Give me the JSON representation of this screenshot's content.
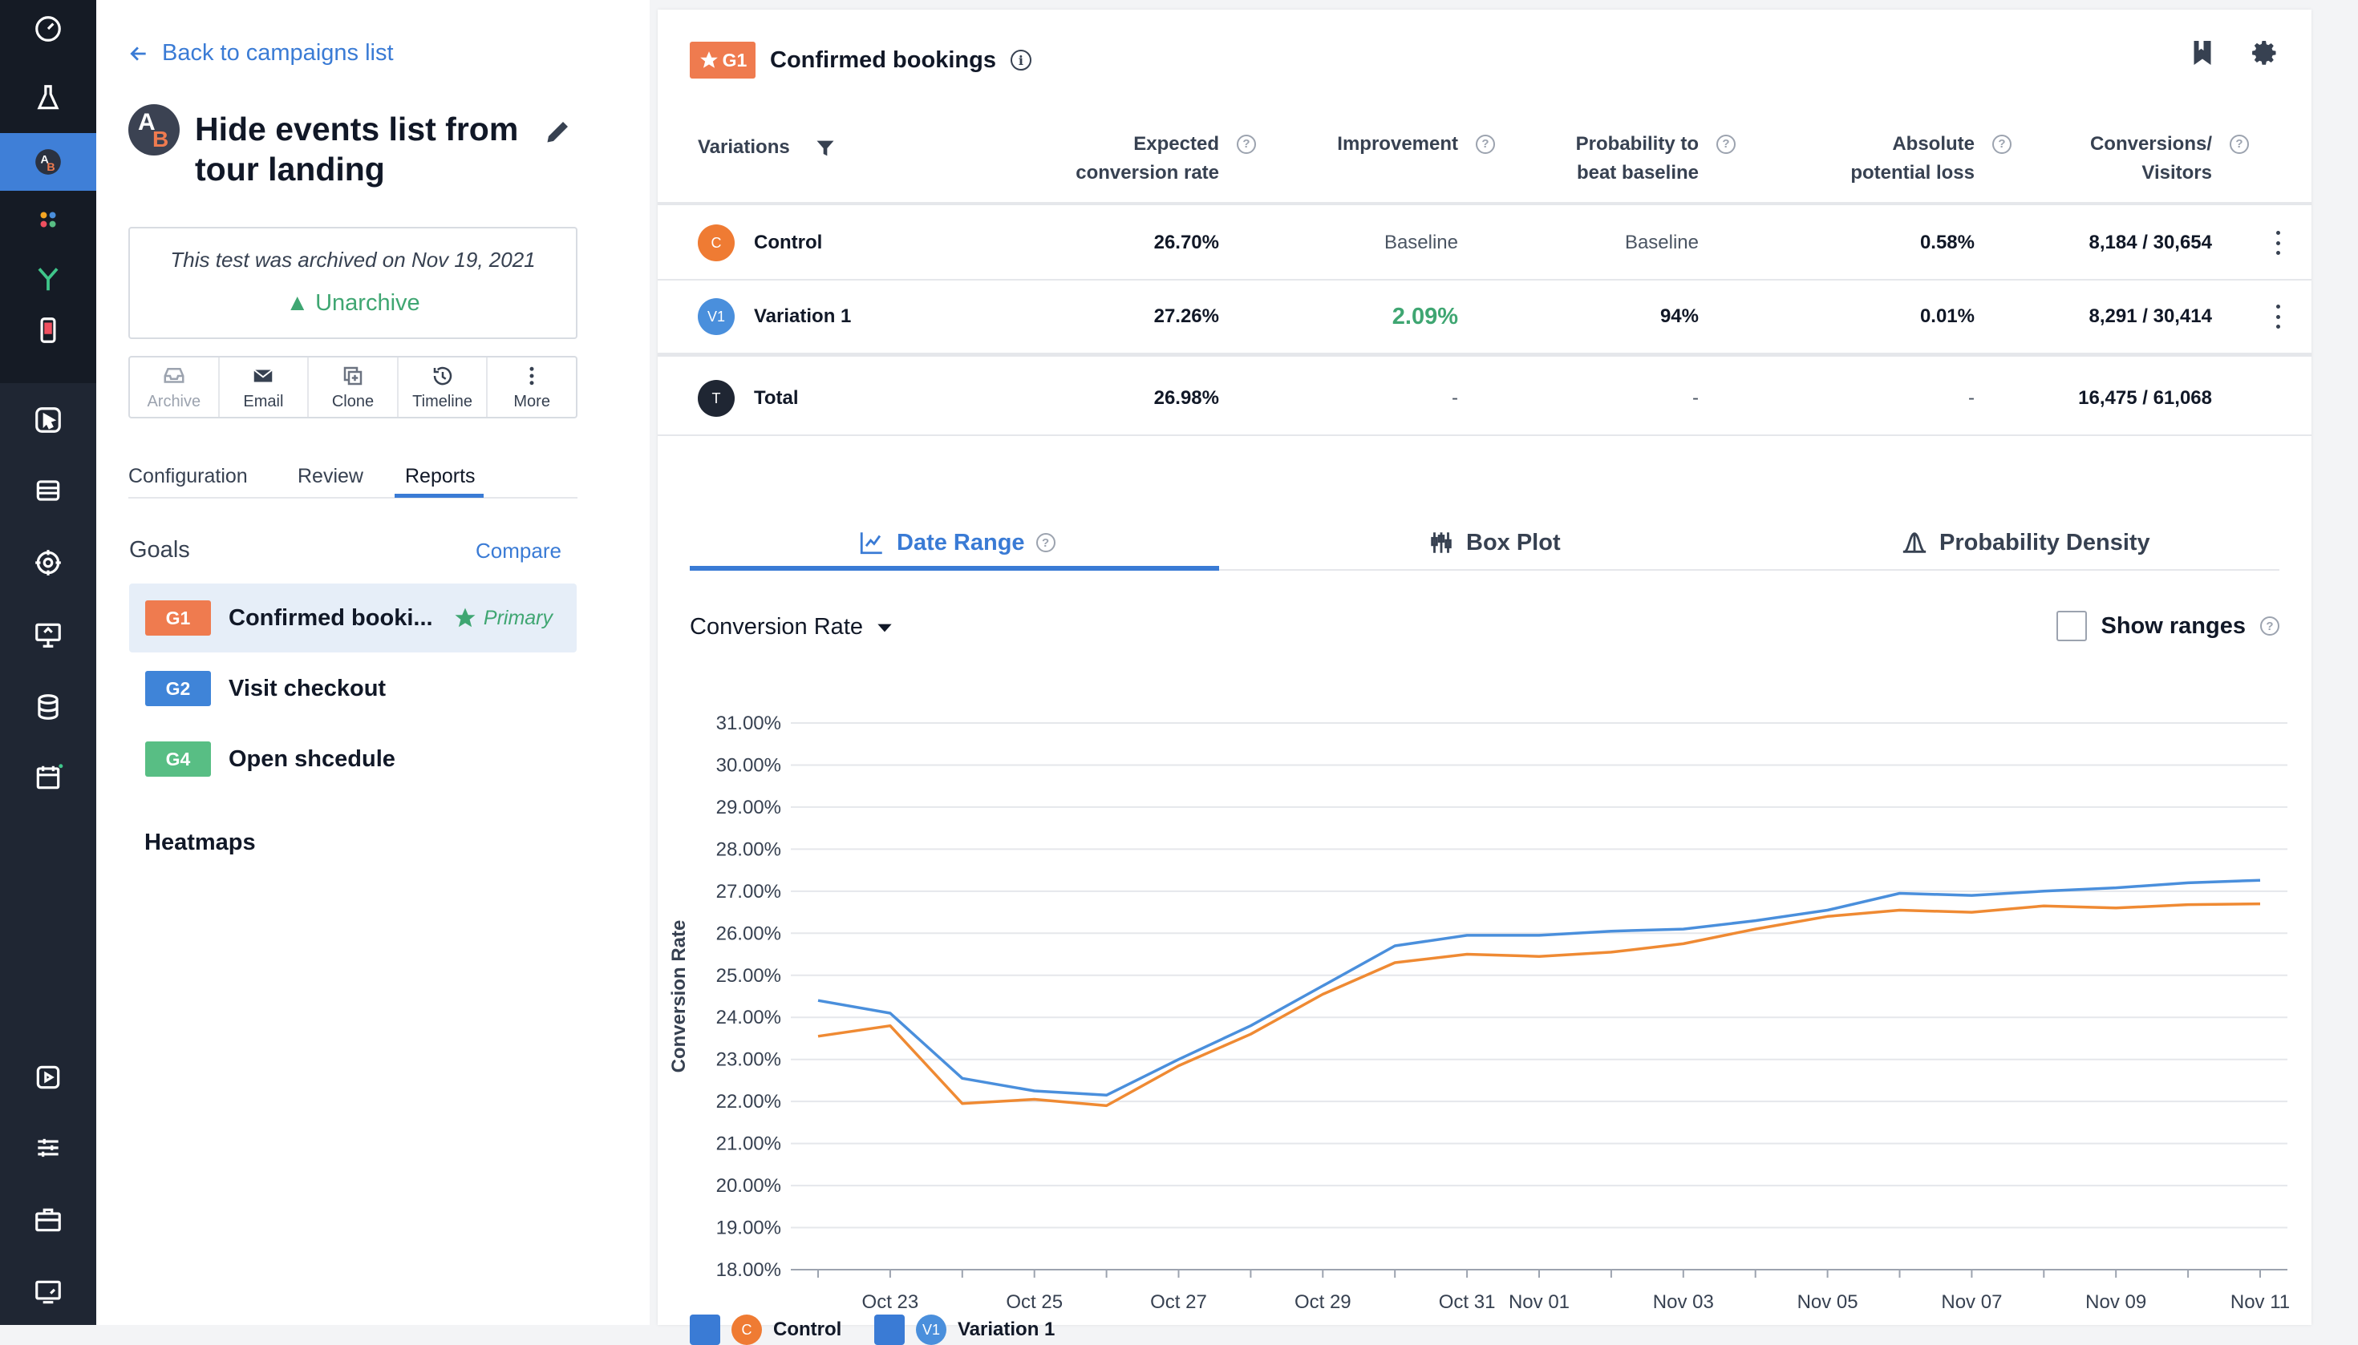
{
  "nav": {
    "back_label": "Back to campaigns list",
    "title": "Hide events list from tour landing",
    "avatar_letters": [
      "A",
      "B"
    ],
    "archived_message": "This test was archived on Nov 19, 2021",
    "unarchive_label": "Unarchive",
    "toolbar": [
      {
        "label": "Archive",
        "icon": "archive-icon",
        "disabled": true
      },
      {
        "label": "Email",
        "icon": "email-icon",
        "disabled": false
      },
      {
        "label": "Clone",
        "icon": "clone-icon",
        "disabled": false
      },
      {
        "label": "Timeline",
        "icon": "timeline-icon",
        "disabled": false
      },
      {
        "label": "More",
        "icon": "more-icon",
        "disabled": false
      }
    ],
    "tabs": [
      "Configuration",
      "Review",
      "Reports"
    ],
    "active_tab": "Reports",
    "goals_heading": "Goals",
    "compare_label": "Compare",
    "goals": [
      {
        "badge": "G1",
        "name": "Confirmed booki...",
        "color": "#ef7b4f",
        "primary": "Primary"
      },
      {
        "badge": "G2",
        "name": "Visit checkout",
        "color": "#3f84d8"
      },
      {
        "badge": "G4",
        "name": "Open shcedule",
        "color": "#58be84"
      }
    ],
    "heatmaps_label": "Heatmaps"
  },
  "report": {
    "badge": "G1",
    "title": "Confirmed bookings",
    "columns": {
      "variations": "Variations",
      "expected": "Expected\nconversion rate",
      "improvement": "Improvement",
      "probability": "Probability to\nbeat baseline",
      "loss": "Absolute\npotential loss",
      "conversions": "Conversions/\nVisitors"
    },
    "rows": [
      {
        "tag": "C",
        "name": "Control",
        "color": "#ef7b33",
        "expected": "26.70%",
        "improvement": "Baseline",
        "probability": "Baseline",
        "loss": "0.58%",
        "conversions": "8,184 / 30,654"
      },
      {
        "tag": "V1",
        "name": "Variation 1",
        "color": "#4a8fdc",
        "expected": "27.26%",
        "improvement": "2.09%",
        "probability": "94%",
        "loss": "0.01%",
        "conversions": "8,291 / 30,414"
      },
      {
        "tag": "T",
        "name": "Total",
        "color": "#1f2633",
        "expected": "26.98%",
        "improvement": "-",
        "probability": "-",
        "loss": "-",
        "conversions": "16,475 / 61,068"
      }
    ],
    "improvement_color": "#3fa672",
    "chart_tabs": [
      "Date Range",
      "Box Plot",
      "Probability Density"
    ],
    "metric_label": "Conversion Rate",
    "show_ranges_label": "Show ranges"
  },
  "chart_data": {
    "type": "line",
    "ylabel": "Conversion Rate",
    "ylim": [
      18,
      31
    ],
    "yticks": [
      "31.00%",
      "30.00%",
      "29.00%",
      "28.00%",
      "27.00%",
      "26.00%",
      "25.00%",
      "24.00%",
      "23.00%",
      "22.00%",
      "21.00%",
      "20.00%",
      "19.00%",
      "18.00%"
    ],
    "x": [
      "Oct 22",
      "Oct 23",
      "Oct 24",
      "Oct 25",
      "Oct 26",
      "Oct 27",
      "Oct 28",
      "Oct 29",
      "Oct 30",
      "Oct 31",
      "Nov 01",
      "Nov 02",
      "Nov 03",
      "Nov 04",
      "Nov 05",
      "Nov 06",
      "Nov 07",
      "Nov 08",
      "Nov 09",
      "Nov 10",
      "Nov 11"
    ],
    "xtick_labels": [
      "Oct 23",
      "Oct 25",
      "Oct 27",
      "Oct 29",
      "Oct 31",
      "Nov 01",
      "Nov 03",
      "Nov 05",
      "Nov 07",
      "Nov 09",
      "Nov 11"
    ],
    "series": [
      {
        "name": "Control",
        "color": "#ef8a33",
        "values": [
          23.55,
          23.8,
          21.95,
          22.05,
          21.9,
          22.85,
          23.6,
          24.55,
          25.3,
          25.5,
          25.45,
          25.55,
          25.75,
          26.1,
          26.4,
          26.55,
          26.5,
          26.65,
          26.6,
          26.68,
          26.7
        ]
      },
      {
        "name": "Variation 1",
        "color": "#4a8fdc",
        "values": [
          24.4,
          24.1,
          22.55,
          22.25,
          22.15,
          23.0,
          23.8,
          24.75,
          25.7,
          25.95,
          25.95,
          26.05,
          26.1,
          26.3,
          26.55,
          26.95,
          26.9,
          27.0,
          27.08,
          27.2,
          27.26
        ]
      }
    ]
  }
}
